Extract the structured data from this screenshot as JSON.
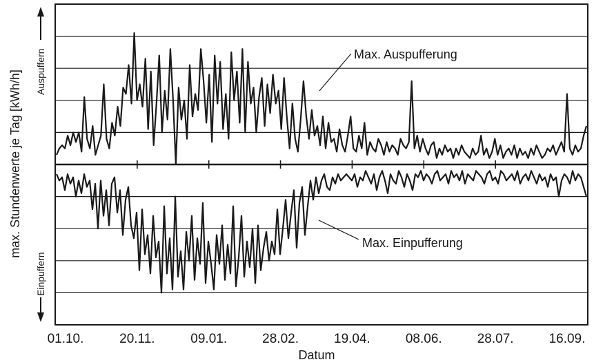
{
  "chart_data": {
    "type": "line",
    "title": "",
    "xlabel": "Datum",
    "ylabel": "max. Stundenwerte je Tag [kWh/h]",
    "x_ticks": [
      "01.10.",
      "20.11.",
      "09.01.",
      "28.02.",
      "19.04.",
      "08.06.",
      "28.07.",
      "16.09."
    ],
    "ylim": [
      -5,
      5
    ],
    "grid": "horizontal",
    "legend": "none",
    "direction_labels": {
      "up": "Auspuffern",
      "down": "Einpuffern"
    },
    "series": [
      {
        "name": "Max. Auspufferung",
        "values": [
          0.3,
          0.5,
          0.6,
          0.5,
          0.9,
          0.6,
          1.0,
          0.7,
          1.0,
          0.4,
          2.1,
          0.8,
          0.5,
          1.2,
          0.3,
          0.6,
          0.9,
          2.5,
          0.8,
          0.5,
          1.3,
          0.9,
          1.8,
          1.2,
          2.4,
          2.2,
          3.1,
          1.9,
          4.1,
          2.0,
          2.5,
          1.8,
          3.3,
          1.1,
          2.9,
          0.6,
          1.9,
          3.4,
          1.0,
          2.3,
          1.4,
          3.6,
          2.0,
          0.0,
          2.4,
          1.4,
          2.0,
          0.8,
          3.1,
          1.5,
          2.2,
          1.7,
          3.6,
          2.6,
          1.3,
          2.8,
          0.7,
          3.4,
          1.9,
          3.2,
          1.1,
          2.2,
          0.8,
          3.5,
          2.0,
          2.9,
          1.3,
          3.6,
          1.0,
          3.2,
          1.9,
          2.4,
          1.0,
          2.1,
          2.7,
          1.2,
          2.5,
          1.6,
          2.8,
          1.9,
          2.3,
          1.1,
          2.7,
          1.5,
          0.5,
          1.9,
          0.8,
          0.4,
          1.4,
          2.6,
          1.5,
          0.8,
          1.7,
          0.9,
          1.2,
          0.6,
          1.5,
          0.5,
          1.3,
          0.7,
          0.8,
          0.4,
          1.1,
          0.6,
          0.4,
          0.9,
          1.5,
          0.5,
          0.4,
          0.9,
          0.5,
          1.3,
          0.3,
          0.7,
          0.5,
          0.4,
          0.8,
          0.6,
          0.3,
          0.7,
          0.4,
          0.6,
          0.5,
          0.3,
          0.8,
          0.6,
          0.5,
          0.7,
          2.6,
          0.5,
          0.9,
          0.4,
          0.8,
          0.5,
          0.3,
          0.6,
          0.7,
          0.2,
          0.5,
          0.3,
          0.6,
          0.4,
          0.5,
          0.2,
          0.5,
          0.3,
          0.6,
          0.4,
          0.3,
          0.2,
          0.5,
          0.3,
          0.4,
          0.9,
          0.3,
          0.5,
          0.2,
          0.4,
          0.8,
          0.3,
          0.6,
          0.2,
          0.4,
          0.5,
          0.3,
          0.6,
          0.2,
          0.5,
          0.3,
          0.4,
          0.2,
          0.5,
          0.3,
          0.6,
          0.4,
          0.2,
          0.3,
          0.5,
          0.4,
          0.6,
          0.3,
          0.5,
          0.7,
          0.4,
          2.2,
          0.5,
          0.3,
          0.6,
          0.4,
          0.5,
          0.9,
          1.2
        ]
      },
      {
        "name": "Max. Einpufferung",
        "values": [
          -0.3,
          -0.5,
          -0.4,
          -0.8,
          -0.3,
          -0.6,
          -0.4,
          -1.0,
          -0.5,
          -0.9,
          -0.3,
          -0.7,
          -0.5,
          -1.4,
          -0.6,
          -2.0,
          -0.5,
          -1.6,
          -0.8,
          -1.9,
          -0.6,
          -0.4,
          -1.5,
          -0.8,
          -2.2,
          -1.1,
          -0.7,
          -1.9,
          -2.3,
          -1.5,
          -3.3,
          -1.4,
          -2.8,
          -2.2,
          -3.4,
          -1.6,
          -2.9,
          -2.4,
          -4.0,
          -1.3,
          -3.4,
          -2.3,
          -3.9,
          -1.0,
          -3.5,
          -2.7,
          -3.9,
          -2.1,
          -3.0,
          -1.6,
          -3.6,
          -2.3,
          -3.1,
          -1.2,
          -3.7,
          -2.4,
          -3.1,
          -3.9,
          -2.2,
          -3.1,
          -1.9,
          -3.6,
          -2.5,
          -3.4,
          -1.3,
          -3.8,
          -2.9,
          -1.6,
          -3.5,
          -2.4,
          -3.2,
          -2.0,
          -3.7,
          -1.9,
          -3.3,
          -2.6,
          -2.1,
          -3.0,
          -2.4,
          -2.8,
          -1.4,
          -2.8,
          -2.0,
          -1.1,
          -2.3,
          -1.5,
          -0.8,
          -2.6,
          -1.2,
          -0.7,
          -2.2,
          -1.3,
          -0.5,
          -1.1,
          -0.4,
          -0.9,
          -0.5,
          -0.3,
          -0.7,
          -0.8,
          -0.4,
          -0.6,
          -0.3,
          -0.5,
          -0.4,
          -0.3,
          -0.4,
          -0.5,
          -0.3,
          -0.7,
          -0.4,
          -0.5,
          -0.2,
          -0.4,
          -0.6,
          -0.3,
          -0.8,
          -0.4,
          -0.2,
          -0.5,
          -0.9,
          -0.3,
          -0.5,
          -0.6,
          -0.2,
          -0.4,
          -0.7,
          -0.3,
          -0.5,
          -0.8,
          -0.3,
          -0.4,
          -0.2,
          -0.5,
          -0.3,
          -0.4,
          -0.6,
          -0.3,
          -0.2,
          -0.5,
          -0.4,
          -0.3,
          -0.6,
          -0.2,
          -0.4,
          -0.3,
          -0.5,
          -0.2,
          -0.6,
          -0.3,
          -0.4,
          -0.5,
          -0.2,
          -0.3,
          -0.4,
          -0.6,
          -0.3,
          -0.2,
          -0.5,
          -0.4,
          -0.6,
          -0.2,
          -0.3,
          -0.5,
          -0.4,
          -0.3,
          -0.5,
          -0.2,
          -0.6,
          -0.4,
          -0.3,
          -0.5,
          -0.2,
          -0.4,
          -0.6,
          -0.3,
          -0.5,
          -0.4,
          -0.7,
          -0.3,
          -0.5,
          -0.4,
          -1.0,
          -0.5,
          -0.3,
          -0.4,
          -0.6,
          -0.2,
          -0.5,
          -0.3,
          -0.4,
          -0.7,
          -1.0
        ]
      }
    ]
  },
  "annotations": {
    "upper": "Max. Auspufferung",
    "lower": "Max. Einpufferung"
  }
}
